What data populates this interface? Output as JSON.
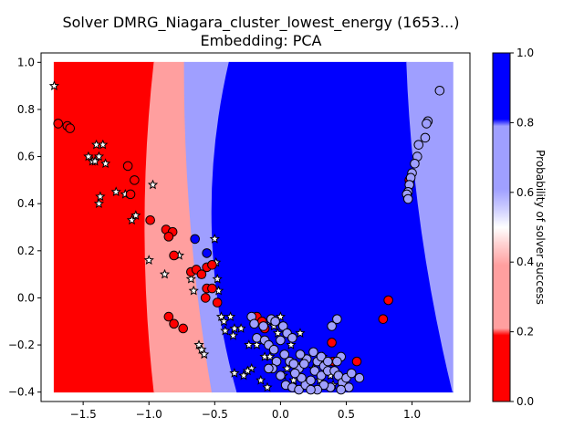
{
  "chart_data": {
    "type": "scatter",
    "title": "Solver DMRG_Niagara_cluster_lowest_energy (1653...)",
    "subtitle": "Embedding: PCA",
    "xlabel": "",
    "ylabel": "",
    "xlim": [
      -1.82,
      1.44
    ],
    "ylim": [
      -0.44,
      1.04
    ],
    "x_ticks": [
      -1.5,
      -1.0,
      -0.5,
      0.0,
      0.5,
      1.0
    ],
    "x_tick_labels": [
      "−1.5",
      "−1.0",
      "−0.5",
      "0.0",
      "0.5",
      "1.0"
    ],
    "y_ticks": [
      -0.4,
      -0.2,
      0.0,
      0.2,
      0.4,
      0.6,
      0.8,
      1.0
    ],
    "y_tick_labels": [
      "−0.4",
      "−0.2",
      "0.0",
      "0.2",
      "0.4",
      "0.6",
      "0.8",
      "1.0"
    ],
    "grid": false,
    "background_regions": {
      "x_range": [
        -1.72,
        1.31
      ],
      "y_range": [
        -0.4,
        1.0
      ],
      "bands": [
        {
          "probability_bin": "0.0-0.2",
          "color": "#ff0000",
          "top_x_max": -0.96,
          "bottom_x_max": -0.96,
          "bulge_x_max": -1.03
        },
        {
          "probability_bin": "0.2-0.4",
          "color": "#ff9f9f",
          "top_x_max": -0.73,
          "bottom_x_max": -0.52,
          "bulge_x_max": -0.68
        },
        {
          "probability_bin": "0.6-0.8",
          "color": "#9f9fff",
          "top_x_max": -0.39,
          "bottom_x_max": -0.33,
          "bulge_x_max": -0.52
        },
        {
          "probability_bin": "0.8-1.0",
          "color": "#0000ff",
          "top_x_max": 0.96,
          "bottom_x_max": 1.31,
          "bulge_x_max": 1.07
        },
        {
          "probability_bin": "0.6-0.8",
          "color": "#9f9fff",
          "top_x_max": 1.31,
          "bottom_x_max": 1.31,
          "bulge_x_max": 1.31
        }
      ]
    },
    "series": [
      {
        "marker": "star",
        "color": "#ffffff",
        "points": [
          [
            -1.72,
            0.9
          ],
          [
            -1.43,
            0.58
          ],
          [
            -1.4,
            0.65
          ],
          [
            -1.35,
            0.65
          ],
          [
            -1.38,
            0.6
          ],
          [
            -1.33,
            0.57
          ],
          [
            -1.41,
            0.58
          ],
          [
            -1.46,
            0.6
          ],
          [
            -1.37,
            0.43
          ],
          [
            -1.38,
            0.4
          ],
          [
            -1.25,
            0.45
          ],
          [
            -1.18,
            0.44
          ],
          [
            -1.13,
            0.33
          ],
          [
            -1.1,
            0.35
          ],
          [
            -0.97,
            0.48
          ],
          [
            -1.0,
            0.16
          ],
          [
            -0.88,
            0.1
          ],
          [
            -0.77,
            0.18
          ],
          [
            -0.68,
            0.08
          ],
          [
            -0.66,
            0.03
          ],
          [
            -0.6,
            0.1
          ],
          [
            -0.5,
            0.25
          ],
          [
            -0.49,
            0.15
          ],
          [
            -0.48,
            0.08
          ],
          [
            -0.47,
            0.03
          ],
          [
            -0.45,
            -0.08
          ],
          [
            -0.43,
            -0.1
          ],
          [
            -0.42,
            -0.14
          ],
          [
            -0.38,
            -0.08
          ],
          [
            -0.36,
            -0.16
          ],
          [
            -0.62,
            -0.2
          ],
          [
            -0.6,
            -0.22
          ],
          [
            -0.58,
            -0.24
          ],
          [
            -0.35,
            -0.13
          ],
          [
            -0.3,
            -0.13
          ],
          [
            -0.24,
            -0.2
          ],
          [
            -0.22,
            -0.3
          ],
          [
            -0.18,
            -0.2
          ],
          [
            -0.12,
            -0.25
          ],
          [
            -0.08,
            -0.25
          ],
          [
            -0.25,
            -0.31
          ],
          [
            -0.28,
            -0.33
          ],
          [
            -0.35,
            -0.32
          ],
          [
            -0.15,
            -0.35
          ],
          [
            -0.1,
            -0.38
          ],
          [
            0.02,
            -0.33
          ],
          [
            0.05,
            -0.3
          ],
          [
            0.1,
            -0.35
          ],
          [
            0.12,
            -0.28
          ],
          [
            0.18,
            -0.25
          ],
          [
            0.25,
            -0.3
          ],
          [
            0.22,
            -0.38
          ],
          [
            0.3,
            -0.35
          ],
          [
            0.38,
            -0.33
          ],
          [
            0.4,
            -0.37
          ],
          [
            0.32,
            -0.25
          ],
          [
            0.08,
            -0.2
          ],
          [
            0.15,
            -0.15
          ],
          [
            -0.02,
            -0.15
          ],
          [
            -0.05,
            -0.12
          ],
          [
            0.0,
            -0.08
          ],
          [
            -0.08,
            -0.1
          ]
        ]
      },
      {
        "marker": "circle",
        "color": "#ff0000",
        "points": [
          [
            -1.69,
            0.74
          ],
          [
            -1.62,
            0.73
          ],
          [
            -1.6,
            0.72
          ],
          [
            -1.16,
            0.56
          ],
          [
            -1.11,
            0.5
          ],
          [
            -1.14,
            0.44
          ],
          [
            -0.99,
            0.33
          ],
          [
            -0.87,
            0.29
          ],
          [
            -0.82,
            0.28
          ],
          [
            -0.81,
            0.18
          ],
          [
            -0.85,
            0.26
          ],
          [
            -0.68,
            0.11
          ],
          [
            -0.64,
            0.12
          ],
          [
            -0.6,
            0.1
          ],
          [
            -0.56,
            0.13
          ],
          [
            -0.57,
            0.0
          ],
          [
            -0.56,
            0.04
          ],
          [
            -0.52,
            0.04
          ],
          [
            -0.48,
            -0.02
          ],
          [
            -0.85,
            -0.08
          ],
          [
            -0.81,
            -0.11
          ],
          [
            -0.74,
            -0.13
          ],
          [
            -0.18,
            -0.08
          ],
          [
            -0.14,
            -0.1
          ],
          [
            -0.12,
            -0.13
          ],
          [
            0.39,
            -0.19
          ],
          [
            0.4,
            -0.27
          ],
          [
            0.58,
            -0.27
          ],
          [
            0.82,
            -0.01
          ],
          [
            0.78,
            -0.09
          ],
          [
            0.98,
            0.5
          ],
          [
            -0.52,
            0.14
          ]
        ]
      },
      {
        "marker": "circle",
        "color": "#0000ff",
        "points": [
          [
            -0.65,
            0.25
          ],
          [
            -0.56,
            0.19
          ]
        ]
      },
      {
        "marker": "circle",
        "color": "#9f9fff",
        "points": [
          [
            1.21,
            0.88
          ],
          [
            1.12,
            0.75
          ],
          [
            1.11,
            0.74
          ],
          [
            1.1,
            0.68
          ],
          [
            1.05,
            0.65
          ],
          [
            1.04,
            0.6
          ],
          [
            1.02,
            0.57
          ],
          [
            1.0,
            0.53
          ],
          [
            0.99,
            0.51
          ],
          [
            0.98,
            0.48
          ],
          [
            0.97,
            0.45
          ],
          [
            0.96,
            0.44
          ],
          [
            0.97,
            0.42
          ],
          [
            0.39,
            -0.12
          ],
          [
            0.43,
            -0.09
          ],
          [
            -0.22,
            -0.08
          ],
          [
            -0.2,
            -0.11
          ],
          [
            -0.13,
            -0.12
          ],
          [
            -0.07,
            -0.09
          ],
          [
            -0.04,
            -0.1
          ],
          [
            0.02,
            -0.12
          ],
          [
            0.05,
            -0.15
          ],
          [
            0.09,
            -0.17
          ],
          [
            -0.18,
            -0.17
          ],
          [
            -0.12,
            -0.18
          ],
          [
            -0.09,
            -0.2
          ],
          [
            -0.05,
            -0.22
          ],
          [
            0.0,
            -0.18
          ],
          [
            0.03,
            -0.24
          ],
          [
            0.07,
            -0.27
          ],
          [
            -0.03,
            -0.27
          ],
          [
            -0.06,
            -0.3
          ],
          [
            -0.09,
            -0.3
          ],
          [
            0.0,
            -0.33
          ],
          [
            0.04,
            -0.37
          ],
          [
            0.09,
            -0.38
          ],
          [
            0.14,
            -0.39
          ],
          [
            0.19,
            -0.37
          ],
          [
            0.23,
            -0.35
          ],
          [
            0.26,
            -0.31
          ],
          [
            0.28,
            -0.27
          ],
          [
            0.2,
            -0.26
          ],
          [
            0.14,
            -0.3
          ],
          [
            0.16,
            -0.34
          ],
          [
            0.31,
            -0.33
          ],
          [
            0.33,
            -0.29
          ],
          [
            0.36,
            -0.31
          ],
          [
            0.41,
            -0.31
          ],
          [
            0.44,
            -0.33
          ],
          [
            0.47,
            -0.36
          ],
          [
            0.5,
            -0.34
          ],
          [
            0.54,
            -0.32
          ],
          [
            0.6,
            -0.34
          ],
          [
            0.52,
            -0.38
          ],
          [
            0.46,
            -0.39
          ],
          [
            0.38,
            -0.38
          ],
          [
            0.33,
            -0.37
          ],
          [
            0.28,
            -0.39
          ],
          [
            0.23,
            -0.39
          ],
          [
            0.11,
            -0.32
          ],
          [
            0.18,
            -0.28
          ],
          [
            0.25,
            -0.23
          ],
          [
            0.31,
            -0.25
          ],
          [
            0.36,
            -0.27
          ],
          [
            0.46,
            -0.25
          ],
          [
            0.43,
            -0.27
          ],
          [
            0.15,
            -0.24
          ],
          [
            0.1,
            -0.28
          ]
        ]
      }
    ],
    "colorbar": {
      "label": "Probability of solver success",
      "range": [
        0.0,
        1.0
      ],
      "ticks": [
        0.0,
        0.2,
        0.4,
        0.6,
        0.8,
        1.0
      ],
      "tick_labels": [
        "0.0",
        "0.2",
        "0.4",
        "0.6",
        "0.8",
        "1.0"
      ],
      "colors": {
        "bin_0_0_2": "#ff0000",
        "bin_0_2_0_4": "#ff9f9f",
        "bin_0_6_0_8": "#9f9fff",
        "bin_0_8_1_0": "#0000ff",
        "mid": "#ffffff"
      }
    }
  }
}
